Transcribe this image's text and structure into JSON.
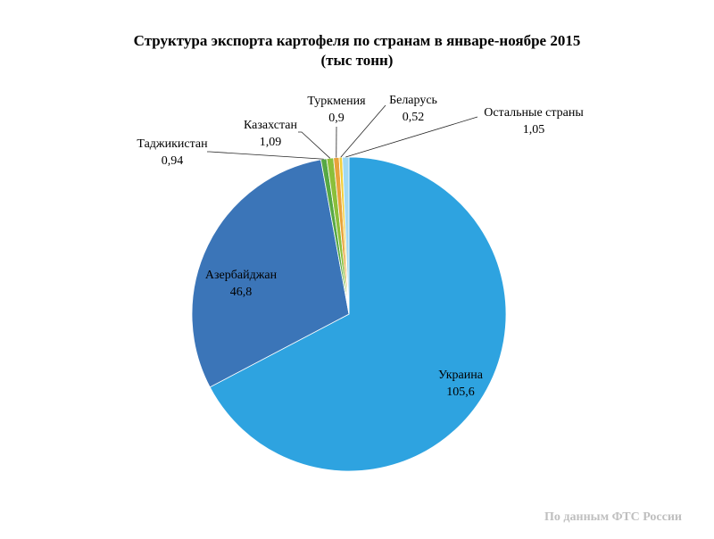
{
  "chart_data": {
    "type": "pie",
    "title_line1": "Структура экспорта картофеля по странам в январе-ноябре 2015",
    "title_line2": "(тыс тонн)",
    "slices": [
      {
        "label": "Украина",
        "value": 105.6,
        "value_label": "105,6",
        "color": "#2ea3e0"
      },
      {
        "label": "Азербайджан",
        "value": 46.8,
        "value_label": "46,8",
        "color": "#3b75b8"
      },
      {
        "label": "Таджикистан",
        "value": 0.94,
        "value_label": "0,94",
        "color": "#56a845"
      },
      {
        "label": "Казахстан",
        "value": 1.09,
        "value_label": "1,09",
        "color": "#8bbf3a"
      },
      {
        "label": "Туркмения",
        "value": 0.9,
        "value_label": "0,9",
        "color": "#e8a23a"
      },
      {
        "label": "Беларусь",
        "value": 0.52,
        "value_label": "0,52",
        "color": "#f2cf3a"
      },
      {
        "label": "Остальные страны",
        "value": 1.05,
        "value_label": "1,05",
        "color": "#9fd8f2"
      }
    ]
  },
  "footer": {
    "source": "По данным ФТС России"
  }
}
